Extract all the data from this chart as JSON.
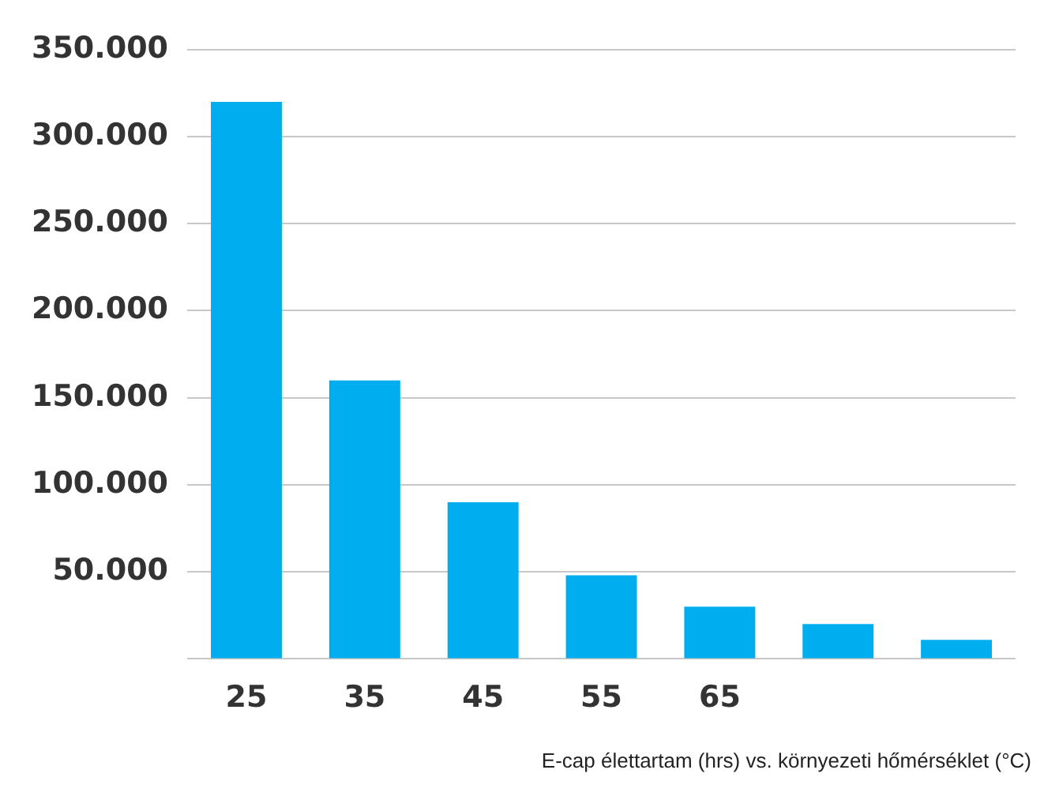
{
  "chart_data": {
    "type": "bar",
    "categories": [
      "25",
      "35",
      "45",
      "55",
      "65",
      null,
      null
    ],
    "values": [
      320000,
      160000,
      90000,
      48000,
      30000,
      20000,
      11000
    ],
    "color": "#00aeef",
    "ylim": [
      0,
      350000
    ],
    "yticks": [
      {
        "value": 0,
        "label": null
      },
      {
        "value": 50000,
        "label": "50.000"
      },
      {
        "value": 100000,
        "label": "100.000"
      },
      {
        "value": 150000,
        "label": "150.000"
      },
      {
        "value": 200000,
        "label": "200.000"
      },
      {
        "value": 250000,
        "label": "250.000"
      },
      {
        "value": 300000,
        "label": "300.000"
      },
      {
        "value": 350000,
        "label": "350.000"
      }
    ],
    "grid": "y",
    "annotations": [
      "E-cap élettartam (hrs) vs. környezeti hőmérséklet (°C)"
    ]
  }
}
